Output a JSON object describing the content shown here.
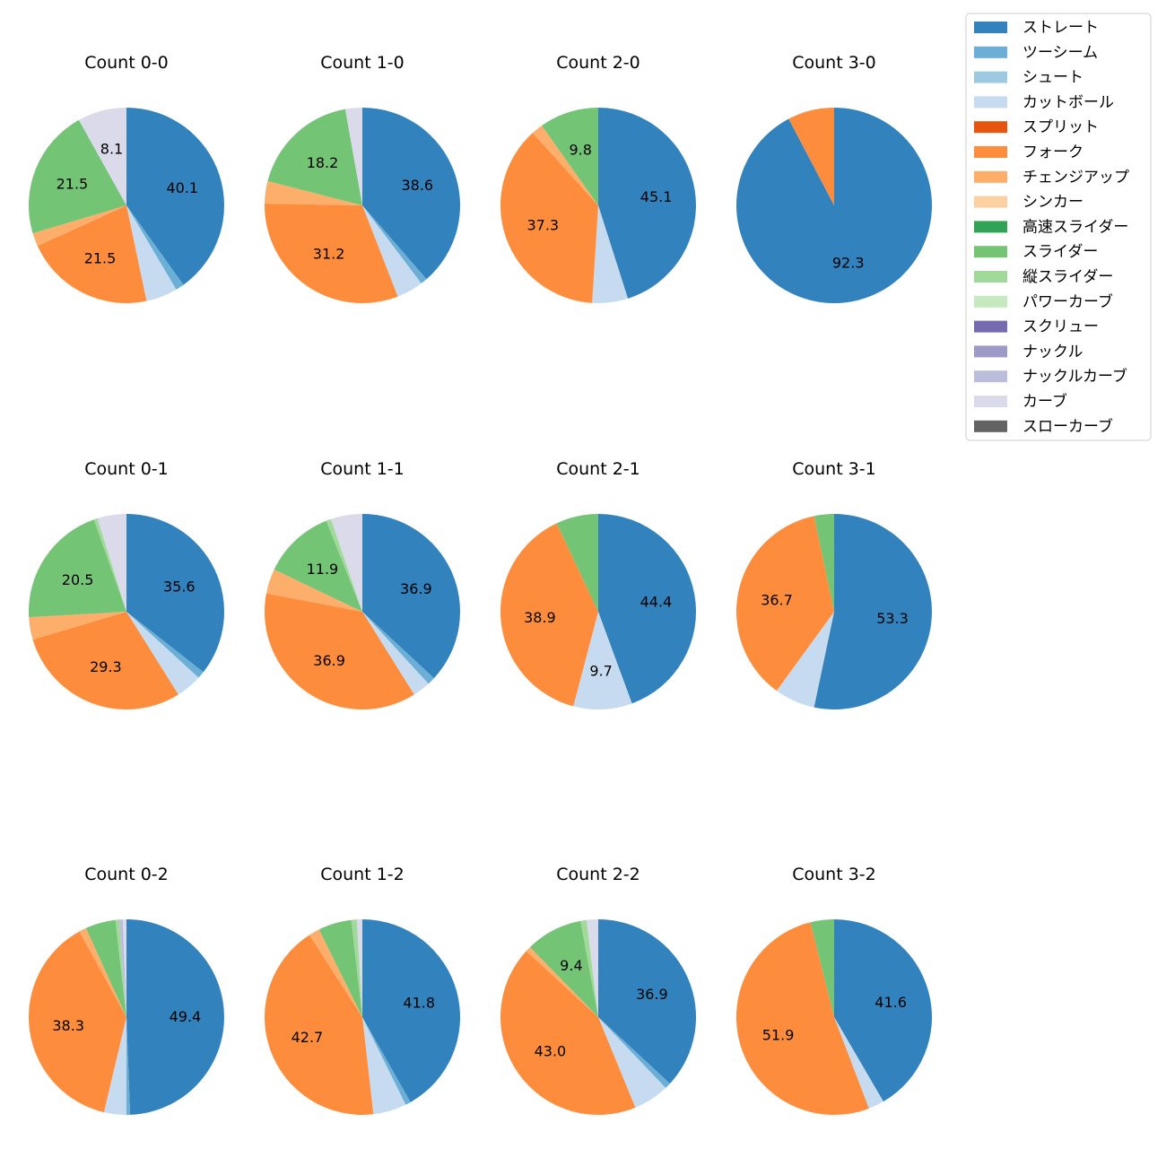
{
  "chart_data": {
    "type": "pie",
    "pitch_types": [
      {
        "name": "ストレート",
        "color": "#3182bd"
      },
      {
        "name": "ツーシーム",
        "color": "#6baed6"
      },
      {
        "name": "シュート",
        "color": "#9ecae1"
      },
      {
        "name": "カットボール",
        "color": "#c6dbef"
      },
      {
        "name": "スプリット",
        "color": "#e6550d"
      },
      {
        "name": "フォーク",
        "color": "#fd8d3c"
      },
      {
        "name": "チェンジアップ",
        "color": "#fdae6b"
      },
      {
        "name": "シンカー",
        "color": "#fdd0a2"
      },
      {
        "name": "高速スライダー",
        "color": "#31a354"
      },
      {
        "name": "スライダー",
        "color": "#74c476"
      },
      {
        "name": "縦スライダー",
        "color": "#a1d99b"
      },
      {
        "name": "パワーカーブ",
        "color": "#c7e9c0"
      },
      {
        "name": "スクリュー",
        "color": "#756bb1"
      },
      {
        "name": "ナックル",
        "color": "#9e9ac8"
      },
      {
        "name": "ナックルカーブ",
        "color": "#bcbddc"
      },
      {
        "name": "カーブ",
        "color": "#dadaeb"
      },
      {
        "name": "スローカーブ",
        "color": "#636363"
      }
    ],
    "pies": [
      {
        "title": "Count 0-0",
        "slices": [
          {
            "pitch": "ストレート",
            "value": 40.1,
            "label": "40.1"
          },
          {
            "pitch": "ツーシーム",
            "value": 1.4
          },
          {
            "pitch": "カットボール",
            "value": 5.2
          },
          {
            "pitch": "フォーク",
            "value": 21.5,
            "label": "21.5"
          },
          {
            "pitch": "チェンジアップ",
            "value": 2.2
          },
          {
            "pitch": "スライダー",
            "value": 21.5,
            "label": "21.5"
          },
          {
            "pitch": "カーブ",
            "value": 8.1,
            "label": "8.1"
          }
        ]
      },
      {
        "title": "Count 1-0",
        "slices": [
          {
            "pitch": "ストレート",
            "value": 38.6,
            "label": "38.6"
          },
          {
            "pitch": "ツーシーム",
            "value": 1.1
          },
          {
            "pitch": "カットボール",
            "value": 4.4
          },
          {
            "pitch": "フォーク",
            "value": 31.2,
            "label": "31.2"
          },
          {
            "pitch": "チェンジアップ",
            "value": 3.7
          },
          {
            "pitch": "スライダー",
            "value": 18.2,
            "label": "18.2"
          },
          {
            "pitch": "カーブ",
            "value": 2.8
          }
        ]
      },
      {
        "title": "Count 2-0",
        "slices": [
          {
            "pitch": "ストレート",
            "value": 45.1,
            "label": "45.1"
          },
          {
            "pitch": "カットボール",
            "value": 5.9
          },
          {
            "pitch": "フォーク",
            "value": 37.3,
            "label": "37.3"
          },
          {
            "pitch": "チェンジアップ",
            "value": 1.9
          },
          {
            "pitch": "スライダー",
            "value": 9.8,
            "label": "9.8"
          }
        ]
      },
      {
        "title": "Count 3-0",
        "slices": [
          {
            "pitch": "ストレート",
            "value": 92.3,
            "label": "92.3"
          },
          {
            "pitch": "フォーク",
            "value": 7.7
          }
        ]
      },
      {
        "title": "Count 0-1",
        "slices": [
          {
            "pitch": "ストレート",
            "value": 35.6,
            "label": "35.6"
          },
          {
            "pitch": "ツーシーム",
            "value": 1.2
          },
          {
            "pitch": "カットボール",
            "value": 4.3
          },
          {
            "pitch": "フォーク",
            "value": 29.3,
            "label": "29.3"
          },
          {
            "pitch": "チェンジアップ",
            "value": 3.7
          },
          {
            "pitch": "スライダー",
            "value": 20.5,
            "label": "20.5"
          },
          {
            "pitch": "縦スライダー",
            "value": 0.6
          },
          {
            "pitch": "カーブ",
            "value": 4.8
          }
        ]
      },
      {
        "title": "Count 1-1",
        "slices": [
          {
            "pitch": "ストレート",
            "value": 36.9,
            "label": "36.9"
          },
          {
            "pitch": "ツーシーム",
            "value": 1.3
          },
          {
            "pitch": "カットボール",
            "value": 2.9
          },
          {
            "pitch": "フォーク",
            "value": 36.9,
            "label": "36.9"
          },
          {
            "pitch": "チェンジアップ",
            "value": 4.1
          },
          {
            "pitch": "スライダー",
            "value": 11.9,
            "label": "11.9"
          },
          {
            "pitch": "縦スライダー",
            "value": 0.8
          },
          {
            "pitch": "カーブ",
            "value": 5.2
          }
        ]
      },
      {
        "title": "Count 2-1",
        "slices": [
          {
            "pitch": "ストレート",
            "value": 44.4,
            "label": "44.4"
          },
          {
            "pitch": "カットボール",
            "value": 9.7,
            "label": "9.7"
          },
          {
            "pitch": "フォーク",
            "value": 38.9,
            "label": "38.9"
          },
          {
            "pitch": "スライダー",
            "value": 7.0
          }
        ]
      },
      {
        "title": "Count 3-1",
        "slices": [
          {
            "pitch": "ストレート",
            "value": 53.3,
            "label": "53.3"
          },
          {
            "pitch": "カットボール",
            "value": 6.7
          },
          {
            "pitch": "フォーク",
            "value": 36.7,
            "label": "36.7"
          },
          {
            "pitch": "スライダー",
            "value": 3.3
          }
        ]
      },
      {
        "title": "Count 0-2",
        "slices": [
          {
            "pitch": "ストレート",
            "value": 49.4,
            "label": "49.4"
          },
          {
            "pitch": "ツーシーム",
            "value": 0.6
          },
          {
            "pitch": "カットボール",
            "value": 3.7
          },
          {
            "pitch": "フォーク",
            "value": 38.3,
            "label": "38.3"
          },
          {
            "pitch": "チェンジアップ",
            "value": 1.2
          },
          {
            "pitch": "スライダー",
            "value": 5.0
          },
          {
            "pitch": "縦スライダー",
            "value": 0.6
          },
          {
            "pitch": "ナックルカーブ",
            "value": 0.6
          },
          {
            "pitch": "カーブ",
            "value": 0.6
          }
        ]
      },
      {
        "title": "Count 1-2",
        "slices": [
          {
            "pitch": "ストレート",
            "value": 41.8,
            "label": "41.8"
          },
          {
            "pitch": "ツーシーム",
            "value": 0.9
          },
          {
            "pitch": "カットボール",
            "value": 5.5
          },
          {
            "pitch": "フォーク",
            "value": 42.7,
            "label": "42.7"
          },
          {
            "pitch": "チェンジアップ",
            "value": 1.8
          },
          {
            "pitch": "スライダー",
            "value": 5.5
          },
          {
            "pitch": "縦スライダー",
            "value": 0.9
          },
          {
            "pitch": "カーブ",
            "value": 0.9
          }
        ]
      },
      {
        "title": "Count 2-2",
        "slices": [
          {
            "pitch": "ストレート",
            "value": 36.9,
            "label": "36.9"
          },
          {
            "pitch": "ツーシーム",
            "value": 1.0
          },
          {
            "pitch": "カットボール",
            "value": 5.9
          },
          {
            "pitch": "フォーク",
            "value": 43.0,
            "label": "43.0"
          },
          {
            "pitch": "チェンジアップ",
            "value": 0.9
          },
          {
            "pitch": "スライダー",
            "value": 9.4,
            "label": "9.4"
          },
          {
            "pitch": "縦スライダー",
            "value": 1.0
          },
          {
            "pitch": "カーブ",
            "value": 1.9
          }
        ]
      },
      {
        "title": "Count 3-2",
        "slices": [
          {
            "pitch": "ストレート",
            "value": 41.6,
            "label": "41.6"
          },
          {
            "pitch": "カットボール",
            "value": 2.6
          },
          {
            "pitch": "フォーク",
            "value": 51.9,
            "label": "51.9"
          },
          {
            "pitch": "スライダー",
            "value": 3.9
          }
        ]
      }
    ]
  }
}
